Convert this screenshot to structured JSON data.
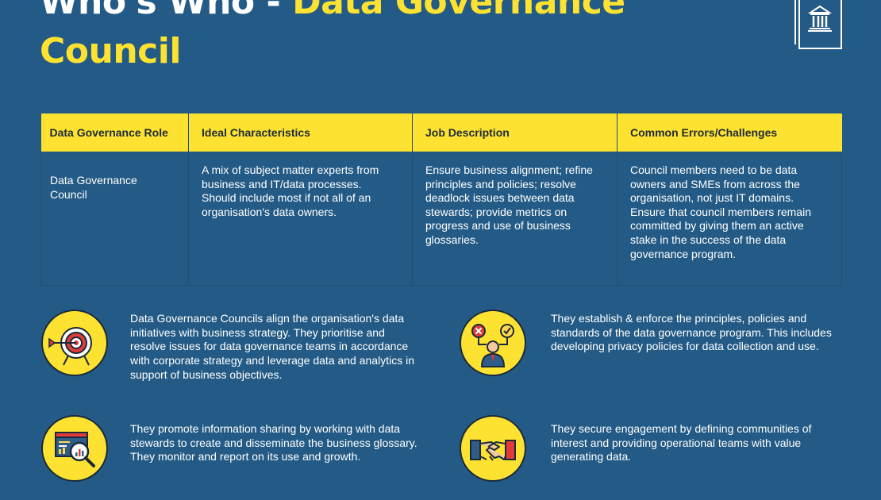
{
  "header": {
    "title_part1": "Who's Who - ",
    "title_part2": "Data Governance",
    "title_line2": "Council"
  },
  "logo": {
    "icon": "bank-building-icon"
  },
  "table": {
    "headers": [
      "Data Governance Role",
      "Ideal Characteristics",
      "Job Description",
      "Common Errors/Challenges"
    ],
    "rows": [
      [
        "Data Governance Council",
        "A mix of subject matter experts from business and IT/data processes. Should include most if not all of an organisation's data owners.",
        "Ensure business alignment; refine principles and policies; resolve deadlock issues between data stewards; provide metrics on progress and use of business glossaries.",
        "Council members need to be data owners and SMEs from across the organisation, not just IT domains. Ensure that council members remain committed by giving them an active stake in the success of the data governance program."
      ]
    ]
  },
  "features": [
    {
      "icon": "target-arrow-icon",
      "text": "Data Governance Councils align the organisation's data initiatives with business strategy. They prioritise and resolve issues for data governance teams in accordance with corporate strategy and leverage data and analytics in support of business objectives."
    },
    {
      "icon": "decision-person-icon",
      "text": "They establish & enforce the principles, policies and standards of the data governance program. This includes developing privacy policies for data collection and use."
    },
    {
      "icon": "analytics-magnifier-icon",
      "text": "They promote information sharing by working with data stewards to create and disseminate the business glossary. They monitor and report on its use and growth."
    },
    {
      "icon": "handshake-icon",
      "text": "They secure engagement by defining communities of interest and providing operational teams with value generating data."
    }
  ],
  "colors": {
    "background": "#245b86",
    "accent": "#fde231",
    "text": "#ffffff"
  }
}
